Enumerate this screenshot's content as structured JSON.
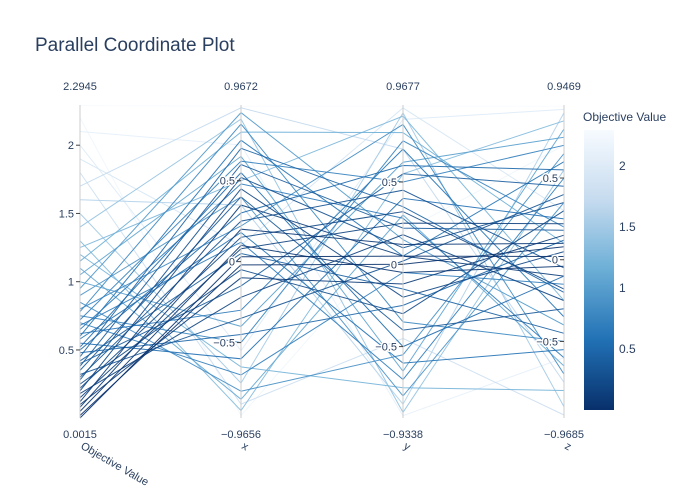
{
  "chart_data": {
    "type": "parallel_coordinates",
    "title": "Parallel Coordinate Plot",
    "colorscale": "Blues (reversed)",
    "colorbar": {
      "title": "Objective Value",
      "ticks": [
        0.5,
        1,
        1.5,
        2
      ],
      "tick_labels": [
        "0.5",
        "1",
        "1.5",
        "2"
      ],
      "range": [
        0.0015,
        2.2945
      ],
      "color_low": "#08306b",
      "color_high": "#f7fbff"
    },
    "dimensions": [
      {
        "label": "Objective Value",
        "range": [
          0.0015,
          2.2945
        ],
        "range_labels": [
          "0.0015",
          "2.2945"
        ],
        "ticks": [
          0.5,
          1,
          1.5,
          2
        ],
        "tick_labels": [
          "0.5",
          "1",
          "1.5",
          "2"
        ]
      },
      {
        "label": "x",
        "range": [
          -0.9656,
          0.9672
        ],
        "range_labels": [
          "−0.9656",
          "0.9672"
        ],
        "ticks": [
          -0.5,
          0,
          0.5
        ],
        "tick_labels": [
          "−0.5",
          "0",
          "0.5"
        ]
      },
      {
        "label": "y",
        "range": [
          -0.9338,
          0.9677
        ],
        "range_labels": [
          "−0.9338",
          "0.9677"
        ],
        "ticks": [
          -0.5,
          0,
          0.5
        ],
        "tick_labels": [
          "−0.5",
          "0",
          "0.5"
        ]
      },
      {
        "label": "z",
        "range": [
          -0.9685,
          0.9469
        ],
        "range_labels": [
          "−0.9685",
          "0.9469"
        ],
        "ticks": [
          -0.5,
          0,
          0.5
        ],
        "tick_labels": [
          "−0.5",
          "0",
          "0.5"
        ]
      }
    ],
    "records": [
      [
        0.0015,
        0.03,
        0.05,
        0.02
      ],
      [
        0.02,
        -0.02,
        0.0,
        0.08
      ],
      [
        0.05,
        0.1,
        -0.05,
        -0.04
      ],
      [
        0.08,
        0.2,
        0.12,
        0.1
      ],
      [
        0.1,
        -0.1,
        -0.12,
        0.15
      ],
      [
        0.12,
        0.35,
        0.05,
        -0.1
      ],
      [
        0.15,
        0.08,
        0.25,
        0.22
      ],
      [
        0.18,
        -0.22,
        0.18,
        -0.25
      ],
      [
        0.2,
        0.45,
        -0.2,
        0.05
      ],
      [
        0.22,
        0.15,
        0.32,
        -0.18
      ],
      [
        0.25,
        -0.05,
        -0.3,
        0.3
      ],
      [
        0.28,
        0.52,
        0.1,
        0.35
      ],
      [
        0.3,
        0.25,
        0.45,
        -0.05
      ],
      [
        0.32,
        -0.35,
        0.02,
        0.4
      ],
      [
        0.35,
        0.4,
        -0.4,
        -0.3
      ],
      [
        0.38,
        0.6,
        0.22,
        0.18
      ],
      [
        0.4,
        -0.15,
        0.55,
        0.45
      ],
      [
        0.42,
        0.05,
        -0.15,
        -0.45
      ],
      [
        0.45,
        0.7,
        0.35,
        -0.2
      ],
      [
        0.48,
        -0.45,
        -0.25,
        0.12
      ],
      [
        0.5,
        0.3,
        0.6,
        0.55
      ],
      [
        0.52,
        0.55,
        -0.5,
        -0.1
      ],
      [
        0.55,
        -0.6,
        0.4,
        0.25
      ],
      [
        0.58,
        0.18,
        -0.6,
        -0.55
      ],
      [
        0.6,
        0.75,
        0.05,
        0.6
      ],
      [
        0.62,
        -0.3,
        0.7,
        -0.35
      ],
      [
        0.65,
        0.48,
        0.28,
        -0.6
      ],
      [
        0.68,
        0.12,
        -0.7,
        0.5
      ],
      [
        0.7,
        -0.7,
        -0.05,
        -0.15
      ],
      [
        0.72,
        0.62,
        0.5,
        0.7
      ],
      [
        0.75,
        -0.5,
        0.75,
        0.2
      ],
      [
        0.78,
        0.85,
        -0.35,
        -0.5
      ],
      [
        0.8,
        0.22,
        0.85,
        -0.7
      ],
      [
        0.85,
        -0.8,
        -0.55,
        0.65
      ],
      [
        0.9,
        0.4,
        -0.8,
        0.35
      ],
      [
        0.95,
        0.92,
        0.15,
        -0.4
      ],
      [
        1.0,
        -0.4,
        0.62,
        0.75
      ],
      [
        1.05,
        0.65,
        -0.65,
        0.8
      ],
      [
        1.1,
        -0.85,
        0.3,
        -0.65
      ],
      [
        1.15,
        0.8,
        0.8,
        0.1
      ],
      [
        1.2,
        -0.65,
        -0.75,
        -0.8
      ],
      [
        1.25,
        0.5,
        0.9,
        -0.25
      ],
      [
        1.3,
        -0.92,
        0.55,
        0.85
      ],
      [
        1.4,
        0.88,
        -0.9,
        0.55
      ],
      [
        1.5,
        -0.75,
        0.92,
        -0.9
      ],
      [
        1.6,
        0.35,
        -0.85,
        0.9
      ],
      [
        1.7,
        0.95,
        0.7,
        -0.75
      ],
      [
        1.8,
        -0.88,
        -0.45,
        -0.95
      ],
      [
        1.9,
        0.1,
        0.95,
        0.3
      ],
      [
        2.0,
        -0.55,
        0.88,
        0.92
      ],
      [
        2.1,
        0.72,
        -0.92,
        -0.6
      ],
      [
        2.2,
        -0.95,
        0.2,
        0.7
      ],
      [
        2.29,
        0.96,
        0.96,
        0.94
      ]
    ]
  }
}
